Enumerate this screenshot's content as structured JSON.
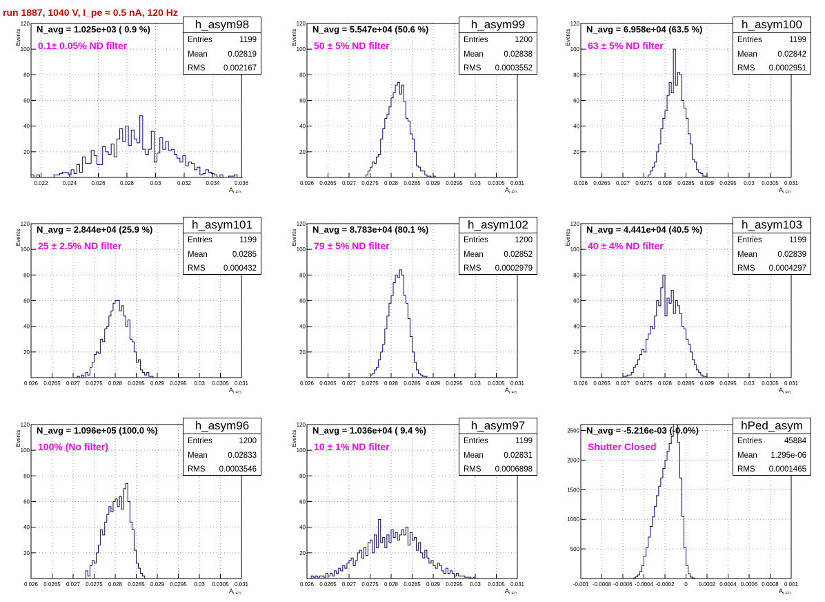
{
  "title": "run 1887,  1040 V, I_pe ≈ 0.5 nA, 120 Hz",
  "stats_labels": {
    "entries": "Entries",
    "mean": "Mean",
    "rms": "RMS"
  },
  "colors": {
    "title": "#e00000",
    "annotation": "#ff00ff",
    "histogram": "#000080",
    "grid": "#888888"
  },
  "chart_data": [
    {
      "type": "histogram",
      "name": "h_asym98",
      "navg_label": "N_avg = 1.025e+03 ( 0.9 %)",
      "filter_label": "0.1± 0.05% ND filter",
      "stats": {
        "entries": "1199",
        "mean": "0.02819",
        "rms": "0.002167"
      },
      "xlabel": "A",
      "xlabel_sub": "LED",
      "ylabel": "Events",
      "xlim": [
        0.0213,
        0.036
      ],
      "ylim": [
        0,
        120
      ],
      "xticks": [
        0.022,
        0.024,
        0.026,
        0.028,
        0.03,
        0.032,
        0.034,
        0.036
      ],
      "xtick_labels": [
        "0.022",
        "0.024",
        "0.026",
        "0.028",
        "0.03",
        "0.032",
        "0.034",
        "0.036"
      ],
      "yticks": [
        0,
        20,
        40,
        60,
        80,
        100,
        120
      ],
      "ytick_labels": [
        "",
        "20",
        "40",
        "60",
        "80",
        "100",
        "120"
      ],
      "bins": {
        "start": 0.0213,
        "width": 0.0002,
        "counts": [
          2,
          0,
          2,
          0,
          0,
          0,
          0,
          0,
          2,
          2,
          3,
          4,
          4,
          2,
          6,
          3,
          10,
          4,
          16,
          11,
          11,
          21,
          17,
          10,
          10,
          24,
          20,
          18,
          26,
          16,
          30,
          38,
          28,
          40,
          25,
          37,
          30,
          27,
          48,
          22,
          18,
          22,
          36,
          12,
          19,
          31,
          22,
          28,
          21,
          22,
          18,
          15,
          12,
          17,
          9,
          12,
          11,
          6,
          8,
          2,
          3,
          6,
          4,
          3,
          2,
          0,
          2,
          0,
          0,
          1,
          1,
          2,
          0,
          0
        ]
      }
    },
    {
      "type": "histogram",
      "name": "h_asym99",
      "navg_label": "N_avg = 5.547e+04 (50.6 %)",
      "filter_label": "50 ± 5% ND filter",
      "stats": {
        "entries": "1200",
        "mean": "0.02838",
        "rms": "0.0003552"
      },
      "xlabel": "A",
      "xlabel_sub": "LED",
      "ylabel": "Events",
      "xlim": [
        0.026,
        0.031
      ],
      "ylim": [
        0,
        120
      ],
      "xticks": [
        0.026,
        0.0265,
        0.027,
        0.0275,
        0.028,
        0.0285,
        0.029,
        0.0295,
        0.03,
        0.0305,
        0.031
      ],
      "xtick_labels": [
        "0.026",
        "0.0265",
        "0.027",
        "0.0275",
        "0.028",
        "0.0285",
        "0.029",
        "0.0295",
        "0.03",
        "0.0305",
        "0.031"
      ],
      "yticks": [
        0,
        20,
        40,
        60,
        80,
        100,
        120
      ],
      "ytick_labels": [
        "",
        "20",
        "40",
        "60",
        "80",
        "100",
        "120"
      ],
      "bins": {
        "start": 0.0274,
        "width": 5e-05,
        "counts": [
          2,
          5,
          8,
          12,
          11,
          16,
          18,
          30,
          38,
          46,
          49,
          55,
          62,
          66,
          72,
          74,
          65,
          72,
          59,
          46,
          44,
          34,
          30,
          20,
          9,
          8,
          5,
          5,
          2,
          1,
          1,
          0,
          1
        ]
      }
    },
    {
      "type": "histogram",
      "name": "h_asym100",
      "navg_label": "N_avg = 6.958e+04 (63.5 %)",
      "filter_label": "63 ± 5% ND filter",
      "stats": {
        "entries": "1199",
        "mean": "0.02842",
        "rms": "0.0002951"
      },
      "xlabel": "A",
      "xlabel_sub": "LED",
      "ylabel": "Events",
      "xlim": [
        0.026,
        0.031
      ],
      "ylim": [
        0,
        120
      ],
      "xticks": [
        0.026,
        0.0265,
        0.027,
        0.0275,
        0.028,
        0.0285,
        0.029,
        0.0295,
        0.03,
        0.0305,
        0.031
      ],
      "xtick_labels": [
        "0.026",
        "0.0265",
        "0.027",
        "0.0275",
        "0.028",
        "0.0285",
        "0.029",
        "0.0295",
        "0.03",
        "0.0305",
        "0.031"
      ],
      "yticks": [
        0,
        20,
        40,
        60,
        80,
        100,
        120
      ],
      "ytick_labels": [
        "",
        "20",
        "40",
        "60",
        "80",
        "100",
        "120"
      ],
      "bins": {
        "start": 0.0276,
        "width": 5e-05,
        "counts": [
          2,
          5,
          8,
          12,
          20,
          26,
          38,
          46,
          52,
          64,
          74,
          66,
          100,
          72,
          82,
          80,
          60,
          54,
          46,
          34,
          26,
          14,
          12,
          6,
          4,
          3,
          1,
          1
        ]
      }
    },
    {
      "type": "histogram",
      "name": "h_asym101",
      "navg_label": "N_avg = 2.844e+04 (25.9 %)",
      "filter_label": "25 ± 2.5% ND filter",
      "stats": {
        "entries": "1199",
        "mean": "0.0285",
        "rms": "0.000432"
      },
      "xlabel": "A",
      "xlabel_sub": "LED",
      "ylabel": "Events",
      "xlim": [
        0.026,
        0.031
      ],
      "ylim": [
        0,
        120
      ],
      "xticks": [
        0.026,
        0.0265,
        0.027,
        0.0275,
        0.028,
        0.0285,
        0.029,
        0.0295,
        0.03,
        0.0305,
        0.031
      ],
      "xtick_labels": [
        "0.026",
        "0.0265",
        "0.027",
        "0.0275",
        "0.028",
        "0.0285",
        "0.029",
        "0.0295",
        "0.03",
        "0.0305",
        "0.031"
      ],
      "yticks": [
        0,
        20,
        40,
        60,
        80,
        100,
        120
      ],
      "ytick_labels": [
        "",
        "20",
        "40",
        "60",
        "80",
        "100",
        "120"
      ],
      "bins": {
        "start": 0.0271,
        "width": 5e-05,
        "counts": [
          1,
          0,
          2,
          0,
          4,
          2,
          8,
          12,
          18,
          20,
          19,
          30,
          28,
          38,
          40,
          48,
          52,
          58,
          60,
          60,
          52,
          56,
          48,
          40,
          45,
          30,
          28,
          20,
          12,
          14,
          6,
          4,
          2,
          4,
          1,
          1
        ]
      }
    },
    {
      "type": "histogram",
      "name": "h_asym102",
      "navg_label": "N_avg = 8.783e+04 (80.1 %)",
      "filter_label": "79 ± 5% ND filter",
      "stats": {
        "entries": "1200",
        "mean": "0.02852",
        "rms": "0.0002979"
      },
      "xlabel": "A",
      "xlabel_sub": "LED",
      "ylabel": "Events",
      "xlim": [
        0.026,
        0.031
      ],
      "ylim": [
        0,
        120
      ],
      "xticks": [
        0.026,
        0.0265,
        0.027,
        0.0275,
        0.028,
        0.0285,
        0.029,
        0.0295,
        0.03,
        0.0305,
        0.031
      ],
      "xtick_labels": [
        "0.026",
        "0.0265",
        "0.027",
        "0.0275",
        "0.028",
        "0.0285",
        "0.029",
        "0.0295",
        "0.03",
        "0.0305",
        "0.031"
      ],
      "yticks": [
        0,
        20,
        40,
        60,
        80,
        100,
        120
      ],
      "ytick_labels": [
        "",
        "20",
        "40",
        "60",
        "80",
        "100",
        "120"
      ],
      "bins": {
        "start": 0.0275,
        "width": 5e-05,
        "counts": [
          2,
          3,
          6,
          8,
          14,
          20,
          26,
          38,
          48,
          58,
          64,
          74,
          80,
          78,
          84,
          80,
          64,
          58,
          46,
          32,
          20,
          12,
          6,
          3,
          2,
          1,
          1
        ]
      }
    },
    {
      "type": "histogram",
      "name": "h_asym103",
      "navg_label": "N_avg = 4.441e+04 (40.5 %)",
      "filter_label": "40 ± 4% ND filter",
      "stats": {
        "entries": "1199",
        "mean": "0.02839",
        "rms": "0.0004297"
      },
      "xlabel": "A",
      "xlabel_sub": "LED",
      "ylabel": "Events",
      "xlim": [
        0.026,
        0.031
      ],
      "ylim": [
        0,
        120
      ],
      "xticks": [
        0.026,
        0.0265,
        0.027,
        0.0275,
        0.028,
        0.0285,
        0.029,
        0.0295,
        0.03,
        0.0305,
        0.031
      ],
      "xtick_labels": [
        "0.026",
        "0.0265",
        "0.027",
        "0.0275",
        "0.028",
        "0.0285",
        "0.029",
        "0.0295",
        "0.03",
        "0.0305",
        "0.031"
      ],
      "yticks": [
        0,
        20,
        40,
        60,
        80,
        100,
        120
      ],
      "ytick_labels": [
        "",
        "20",
        "40",
        "60",
        "80",
        "100",
        "120"
      ],
      "bins": {
        "start": 0.027,
        "width": 5e-05,
        "counts": [
          1,
          1,
          2,
          2,
          4,
          8,
          10,
          14,
          18,
          22,
          20,
          30,
          34,
          40,
          38,
          48,
          60,
          56,
          70,
          80,
          48,
          62,
          58,
          68,
          50,
          60,
          56,
          50,
          40,
          38,
          30,
          26,
          20,
          14,
          10,
          6,
          4,
          2,
          1,
          1
        ]
      }
    },
    {
      "type": "histogram",
      "name": "h_asym96",
      "navg_label": "N_avg = 1.096e+05 (100.0 %)",
      "filter_label": "100% (No filter)",
      "stats": {
        "entries": "1200",
        "mean": "0.02833",
        "rms": "0.0003546"
      },
      "xlabel": "A",
      "xlabel_sub": "LED",
      "ylabel": "Events",
      "xlim": [
        0.026,
        0.031
      ],
      "ylim": [
        0,
        120
      ],
      "xticks": [
        0.026,
        0.0265,
        0.027,
        0.0275,
        0.028,
        0.0285,
        0.029,
        0.0295,
        0.03,
        0.0305,
        0.031
      ],
      "xtick_labels": [
        "0.026",
        "0.0265",
        "0.027",
        "0.0275",
        "0.028",
        "0.0285",
        "0.029",
        "0.0295",
        "0.03",
        "0.0305",
        "0.031"
      ],
      "yticks": [
        0,
        20,
        40,
        60,
        80,
        100,
        120
      ],
      "ytick_labels": [
        "",
        "20",
        "40",
        "60",
        "80",
        "100",
        "120"
      ],
      "bins": {
        "start": 0.0273,
        "width": 5e-05,
        "counts": [
          6,
          2,
          10,
          14,
          12,
          20,
          26,
          38,
          34,
          44,
          50,
          56,
          52,
          60,
          62,
          56,
          64,
          54,
          70,
          74,
          60,
          44,
          38,
          22,
          12,
          8,
          4,
          2
        ]
      }
    },
    {
      "type": "histogram",
      "name": "h_asym97",
      "navg_label": "N_avg = 1.036e+04 ( 9.4 %)",
      "filter_label": "10 ± 1% ND filter",
      "stats": {
        "entries": "1199",
        "mean": "0.02831",
        "rms": "0.0006898"
      },
      "xlabel": "A",
      "xlabel_sub": "LED",
      "ylabel": "Events",
      "xlim": [
        0.026,
        0.031
      ],
      "ylim": [
        0,
        120
      ],
      "xticks": [
        0.026,
        0.0265,
        0.027,
        0.0275,
        0.028,
        0.0285,
        0.029,
        0.0295,
        0.03,
        0.0305,
        0.031
      ],
      "xtick_labels": [
        "0.026",
        "0.0265",
        "0.027",
        "0.0275",
        "0.028",
        "0.0285",
        "0.029",
        "0.0295",
        "0.03",
        "0.0305",
        "0.031"
      ],
      "yticks": [
        0,
        20,
        40,
        60,
        80,
        100,
        120
      ],
      "ytick_labels": [
        "",
        "20",
        "40",
        "60",
        "80",
        "100",
        "120"
      ],
      "bins": {
        "start": 0.0261,
        "width": 5e-05,
        "counts": [
          2,
          1,
          2,
          1,
          2,
          2,
          1,
          4,
          2,
          4,
          2,
          6,
          4,
          8,
          6,
          10,
          8,
          12,
          14,
          16,
          10,
          14,
          20,
          22,
          16,
          24,
          18,
          28,
          30,
          20,
          34,
          24,
          46,
          28,
          32,
          24,
          34,
          28,
          38,
          32,
          36,
          30,
          34,
          38,
          34,
          40,
          26,
          36,
          30,
          32,
          22,
          28,
          20,
          16,
          22,
          16,
          12,
          14,
          10,
          8,
          12,
          10,
          6,
          4,
          8,
          4,
          6,
          4,
          2,
          4,
          2,
          2,
          2,
          1,
          1,
          1,
          0,
          1
        ]
      }
    },
    {
      "type": "histogram",
      "name": "hPed_asym",
      "navg_label": "N_avg = -5.216e-03 (-0.0%)",
      "filter_label": "Shutter Closed",
      "stats": {
        "entries": "45884",
        "mean": "1.295e-06",
        "rms": "0.0001465"
      },
      "xlabel": "A",
      "xlabel_sub": "LED",
      "ylabel": "",
      "xlim": [
        -0.001,
        0.001
      ],
      "ylim": [
        0,
        2600
      ],
      "xticks": [
        -0.001,
        -0.0008,
        -0.0006,
        -0.0004,
        -0.0002,
        0,
        0.0002,
        0.0004,
        0.0006,
        0.0008,
        0.001
      ],
      "xtick_labels": [
        "-0.001",
        "-0.0008",
        "-0.0006",
        "-0.0004",
        "-0.0002",
        "0",
        "0.0002",
        "0.0004",
        "0.0006",
        "0.0008",
        "0.001"
      ],
      "yticks": [
        0,
        500,
        1000,
        1500,
        2000,
        2500
      ],
      "ytick_labels": [
        "",
        "500",
        "1000",
        "1500",
        "2000",
        "2500"
      ],
      "bins": {
        "start": -0.0005,
        "width": 2e-05,
        "counts": [
          10,
          30,
          60,
          120,
          220,
          380,
          520,
          700,
          880,
          1040,
          1220,
          1400,
          1560,
          1700,
          1860,
          2000,
          2150,
          2280,
          2400,
          2600,
          2600,
          2300,
          1700,
          1050,
          520,
          220,
          80,
          25,
          8,
          2
        ]
      }
    }
  ]
}
